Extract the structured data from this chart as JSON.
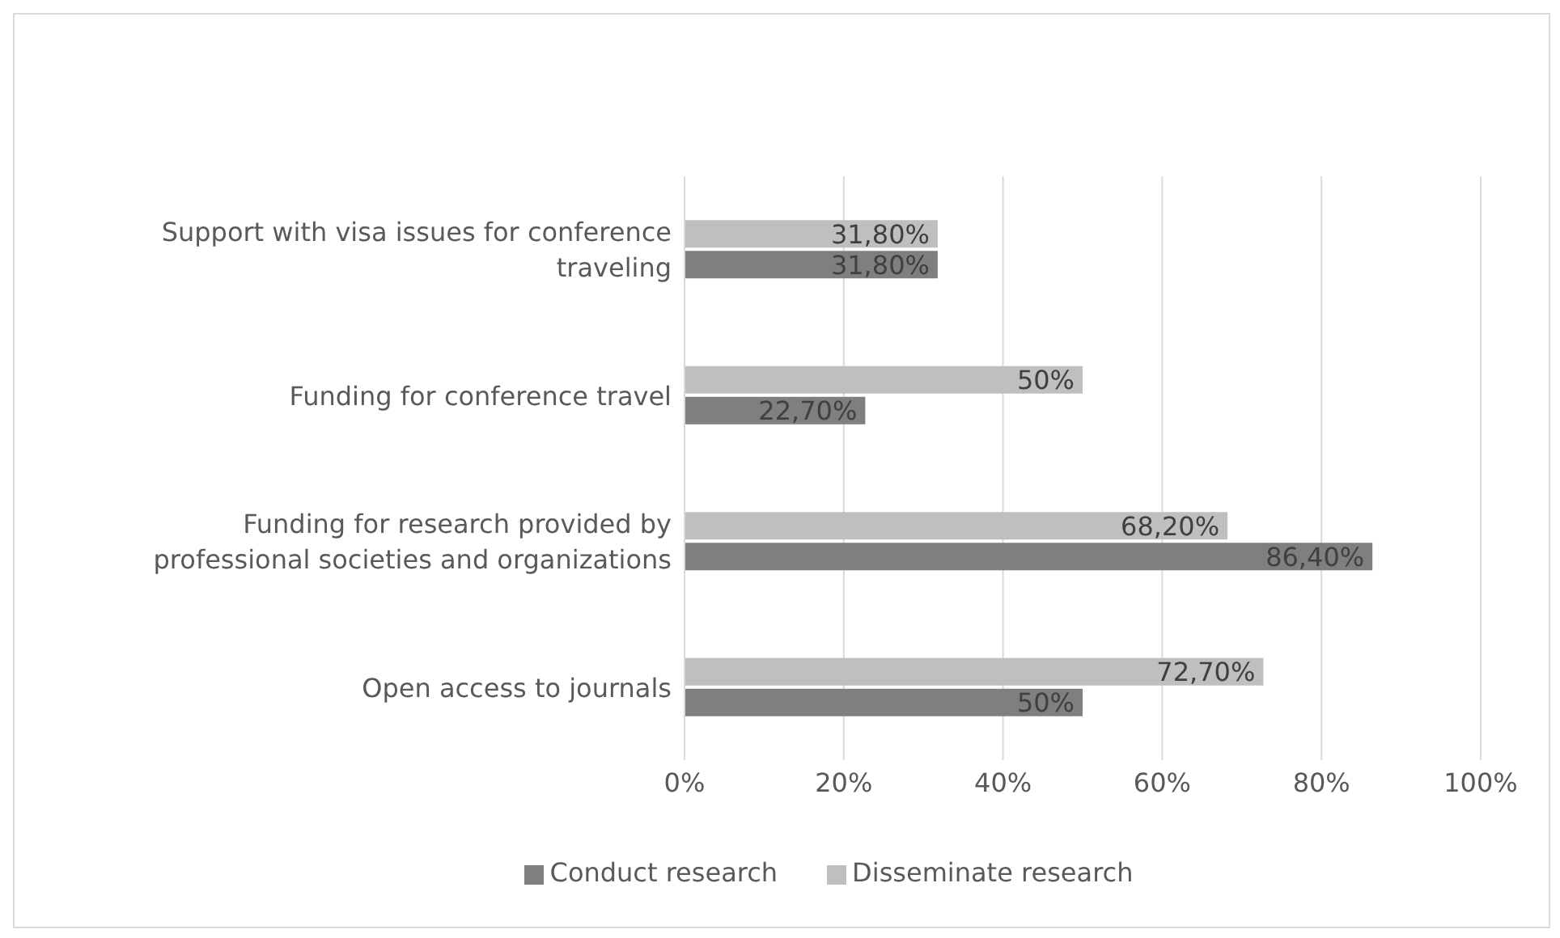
{
  "chart_data": {
    "type": "bar",
    "orientation": "horizontal",
    "categories": [
      "Support with visa issues for conference traveling",
      "Funding for conference travel",
      "Funding for research provided by professional societies and organizations",
      "Open access to journals"
    ],
    "series": [
      {
        "name": "Disseminate research",
        "color": "#bfbfbf",
        "values": [
          31.8,
          50,
          68.2,
          72.7
        ],
        "value_labels": [
          "31,80%",
          "50%",
          "68,20%",
          "72,70%"
        ]
      },
      {
        "name": "Conduct research",
        "color": "#7f7f7f",
        "values": [
          31.8,
          22.7,
          86.4,
          50
        ],
        "value_labels": [
          "31,80%",
          "22,70%",
          "86,40%",
          "50%"
        ]
      }
    ],
    "xlim": [
      0,
      100
    ],
    "xticks": [
      {
        "value": 0,
        "label": "0%"
      },
      {
        "value": 20,
        "label": "20%"
      },
      {
        "value": 40,
        "label": "40%"
      },
      {
        "value": 60,
        "label": "60%"
      },
      {
        "value": 80,
        "label": "80%"
      },
      {
        "value": 100,
        "label": "100%"
      }
    ],
    "grid": "x",
    "legend": "bottom"
  }
}
